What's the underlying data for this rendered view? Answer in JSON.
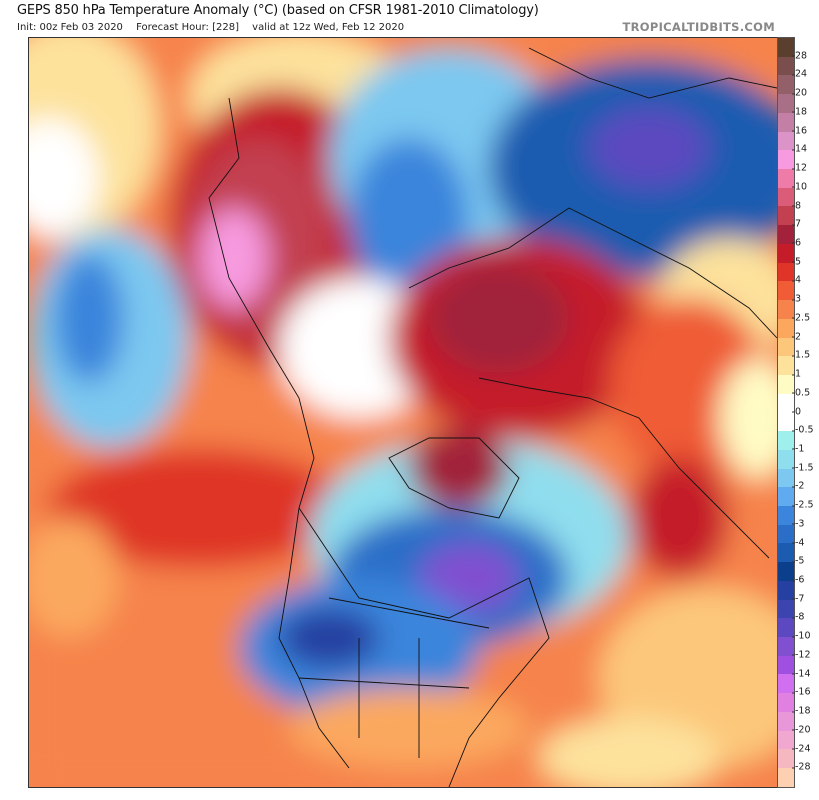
{
  "header": {
    "title": "GEPS 850 hPa Temperature Anomaly (°C) (based on CFSR 1981-2010 Climatology)",
    "init": "Init: 00z Feb 03 2020",
    "forecast_hour": "Forecast Hour: [228]",
    "valid": "valid at 12z Wed, Feb 12 2020",
    "brand": "TROPICALTIDBITS.COM"
  },
  "colorbar": {
    "labels": [
      "28",
      "24",
      "20",
      "18",
      "16",
      "14",
      "12",
      "10",
      "8",
      "7",
      "6",
      "5",
      "4",
      "3",
      "2.5",
      "2",
      "1.5",
      "1",
      "0.5",
      "0",
      "-0.5",
      "-1",
      "-1.5",
      "-2",
      "-2.5",
      "-3",
      "-4",
      "-5",
      "-6",
      "-7",
      "-8",
      "-10",
      "-12",
      "-14",
      "-16",
      "-18",
      "-20",
      "-24",
      "-28"
    ],
    "colors": [
      "#5a3e2e",
      "#7a4e4c",
      "#93606a",
      "#a96f86",
      "#c47fa7",
      "#dc93c8",
      "#f79adf",
      "#ef7ba8",
      "#db5c78",
      "#c2404f",
      "#a1223a",
      "#c51c2a",
      "#df3528",
      "#ef5c35",
      "#f6834c",
      "#fba85e",
      "#fcc77a",
      "#fde29c",
      "#fffbc4",
      "#ffffff",
      "#ffffff",
      "#9ff0ec",
      "#8fdeee",
      "#7cc8f0",
      "#60aaf0",
      "#3b85dc",
      "#2a6ec8",
      "#1b5bb0",
      "#0b3f8c",
      "#2540a0",
      "#3c44b0",
      "#5c48c0",
      "#8050d0",
      "#a050e0",
      "#d070f0",
      "#e080e0",
      "#e898d8",
      "#f0a8d0",
      "#f5b8c0",
      "#fcd0b0"
    ]
  }
}
